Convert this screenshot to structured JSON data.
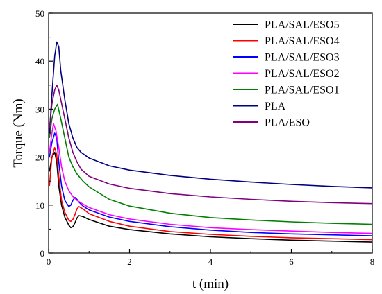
{
  "chart_data": {
    "type": "line",
    "title": "",
    "xlabel": "t (min)",
    "ylabel": "Torque (Nm)",
    "xlim": [
      0,
      8
    ],
    "ylim": [
      0,
      50
    ],
    "xticks": [
      "0",
      "2",
      "4",
      "6",
      "8"
    ],
    "yticks": [
      "0",
      "10",
      "20",
      "30",
      "40",
      "50"
    ],
    "grid": false,
    "legend_position": "top-right",
    "series": [
      {
        "name": "PLA/SAL/ESO5",
        "color": "#000000",
        "x": [
          0.02,
          0.08,
          0.15,
          0.2,
          0.25,
          0.32,
          0.4,
          0.5,
          0.55,
          0.6,
          0.65,
          0.7,
          0.75,
          0.85,
          1.0,
          1.5,
          2,
          3,
          4,
          5,
          6,
          7,
          8
        ],
        "y": [
          17,
          20,
          21,
          19,
          14,
          10,
          7.5,
          5.8,
          5.3,
          5.5,
          6.3,
          7.3,
          7.8,
          7.6,
          7.0,
          5.6,
          4.9,
          4.0,
          3.4,
          3.0,
          2.7,
          2.5,
          2.3
        ]
      },
      {
        "name": "PLA/SAL/ESO4",
        "color": "#ff0000",
        "x": [
          0.02,
          0.08,
          0.15,
          0.2,
          0.25,
          0.32,
          0.4,
          0.5,
          0.55,
          0.6,
          0.65,
          0.7,
          0.75,
          0.85,
          1.0,
          1.5,
          2,
          3,
          4,
          5,
          6,
          7,
          8
        ],
        "y": [
          14,
          20,
          22,
          20.5,
          16,
          11,
          8.5,
          6.8,
          6.6,
          7.0,
          8.0,
          9.2,
          9.7,
          9.2,
          8.2,
          6.6,
          5.6,
          4.5,
          3.9,
          3.5,
          3.2,
          3.0,
          2.8
        ]
      },
      {
        "name": "PLA/SAL/ESO3",
        "color": "#0000ff",
        "x": [
          0.02,
          0.08,
          0.15,
          0.2,
          0.25,
          0.32,
          0.4,
          0.5,
          0.55,
          0.6,
          0.65,
          0.7,
          0.75,
          0.85,
          1.0,
          1.5,
          2,
          3,
          4,
          5,
          6,
          7,
          8
        ],
        "y": [
          20,
          23,
          25,
          24,
          19,
          14,
          11,
          9.7,
          10.0,
          11.0,
          11.6,
          11.2,
          10.6,
          9.8,
          9.0,
          7.5,
          6.6,
          5.5,
          4.8,
          4.3,
          4.0,
          3.8,
          3.6
        ]
      },
      {
        "name": "PLA/SAL/ESO2",
        "color": "#ff00ff",
        "x": [
          0.02,
          0.08,
          0.12,
          0.18,
          0.25,
          0.32,
          0.4,
          0.5,
          0.6,
          0.7,
          0.85,
          1.0,
          1.5,
          2,
          3,
          4,
          5,
          6,
          7,
          8
        ],
        "y": [
          21,
          25,
          27,
          25.5,
          22,
          18,
          15,
          13,
          11.8,
          11.0,
          10.2,
          9.5,
          8.0,
          7.1,
          6.0,
          5.3,
          4.9,
          4.6,
          4.3,
          4.1
        ]
      },
      {
        "name": "PLA/SAL/ESO1",
        "color": "#008000",
        "x": [
          0.02,
          0.08,
          0.15,
          0.22,
          0.3,
          0.4,
          0.5,
          0.6,
          0.7,
          0.85,
          1.0,
          1.5,
          2,
          3,
          4,
          5,
          6,
          7,
          8
        ],
        "y": [
          24,
          28,
          30,
          31,
          28,
          24,
          20,
          18,
          16.5,
          15,
          13.8,
          11.2,
          9.8,
          8.3,
          7.4,
          6.9,
          6.5,
          6.2,
          6.0
        ]
      },
      {
        "name": "PLA",
        "color": "#000080",
        "x": [
          0.02,
          0.08,
          0.15,
          0.2,
          0.25,
          0.3,
          0.4,
          0.5,
          0.6,
          0.7,
          0.8,
          1.0,
          1.5,
          2,
          3,
          4,
          5,
          6,
          7,
          8
        ],
        "y": [
          25,
          33,
          41,
          44,
          43,
          38,
          32,
          27,
          24,
          22,
          21,
          19.8,
          18.2,
          17.3,
          16.2,
          15.4,
          14.8,
          14.3,
          13.9,
          13.6
        ]
      },
      {
        "name": "PLA/ESO",
        "color": "#800080",
        "x": [
          0.02,
          0.08,
          0.15,
          0.2,
          0.25,
          0.3,
          0.4,
          0.5,
          0.6,
          0.7,
          0.8,
          1.0,
          1.5,
          2,
          3,
          4,
          5,
          6,
          7,
          8
        ],
        "y": [
          26,
          31,
          34,
          35,
          34,
          32,
          28,
          24,
          21,
          19,
          17.5,
          16.0,
          14.4,
          13.5,
          12.4,
          11.7,
          11.2,
          10.8,
          10.5,
          10.3
        ]
      }
    ]
  }
}
